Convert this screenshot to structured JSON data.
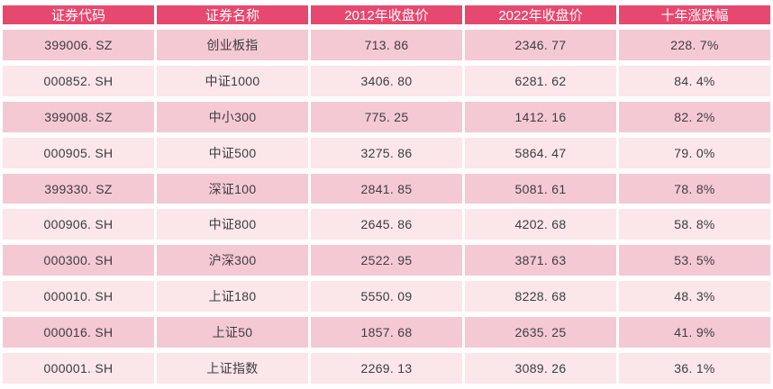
{
  "colors": {
    "page-bg": "#FFFDFD",
    "header-bg": "#E7486F",
    "header-text": "#FFFFFF",
    "row-odd-bg": "#F4C9D3",
    "row-even-bg": "#FBE6EA",
    "body-text": "#3D3D3D"
  },
  "table": {
    "columns": [
      {
        "key": "code",
        "label": "证券代码"
      },
      {
        "key": "name",
        "label": "证券名称"
      },
      {
        "key": "close2012",
        "label": "2012年收盘价"
      },
      {
        "key": "close2022",
        "label": "2022年收盘价"
      },
      {
        "key": "change10y",
        "label": "十年涨跌幅"
      }
    ],
    "rows": [
      [
        "399006. SZ",
        "创业板指",
        "713. 86",
        "2346. 77",
        "228. 7%"
      ],
      [
        "000852. SH",
        "中证1000",
        "3406. 80",
        "6281. 62",
        "84. 4%"
      ],
      [
        "399008. SZ",
        "中小300",
        "775. 25",
        "1412. 16",
        "82. 2%"
      ],
      [
        "000905. SH",
        "中证500",
        "3275. 86",
        "5864. 47",
        "79. 0%"
      ],
      [
        "399330. SZ",
        "深证100",
        "2841. 85",
        "5081. 61",
        "78. 8%"
      ],
      [
        "000906. SH",
        "中证800",
        "2645. 86",
        "4202. 68",
        "58. 8%"
      ],
      [
        "000300. SH",
        "沪深300",
        "2522. 95",
        "3871. 63",
        "53. 5%"
      ],
      [
        "000010. SH",
        "上证180",
        "5550. 09",
        "8228. 68",
        "48. 3%"
      ],
      [
        "000016. SH",
        "上证50",
        "1857. 68",
        "2635. 25",
        "41. 9%"
      ],
      [
        "000001. SH",
        "上证指数",
        "2269. 13",
        "3089. 26",
        "36. 1%"
      ]
    ]
  },
  "chart_data": {
    "type": "table",
    "title": "",
    "columns": [
      "证券代码",
      "证券名称",
      "2012年收盘价",
      "2022年收盘价",
      "十年涨跌幅"
    ],
    "rows": [
      [
        "399006.SZ",
        "创业板指",
        713.86,
        2346.77,
        "228.7%"
      ],
      [
        "000852.SH",
        "中证1000",
        3406.8,
        6281.62,
        "84.4%"
      ],
      [
        "399008.SZ",
        "中小300",
        775.25,
        1412.16,
        "82.2%"
      ],
      [
        "000905.SH",
        "中证500",
        3275.86,
        5864.47,
        "79.0%"
      ],
      [
        "399330.SZ",
        "深证100",
        2841.85,
        5081.61,
        "78.8%"
      ],
      [
        "000906.SH",
        "中证800",
        2645.86,
        4202.68,
        "58.8%"
      ],
      [
        "000300.SH",
        "沪深300",
        2522.95,
        3871.63,
        "53.5%"
      ],
      [
        "000010.SH",
        "上证180",
        5550.09,
        8228.68,
        "48.3%"
      ],
      [
        "000016.SH",
        "上证50",
        1857.68,
        2635.25,
        "41.9%"
      ],
      [
        "000001.SH",
        "上证指数",
        2269.13,
        3089.26,
        "36.1%"
      ]
    ]
  }
}
